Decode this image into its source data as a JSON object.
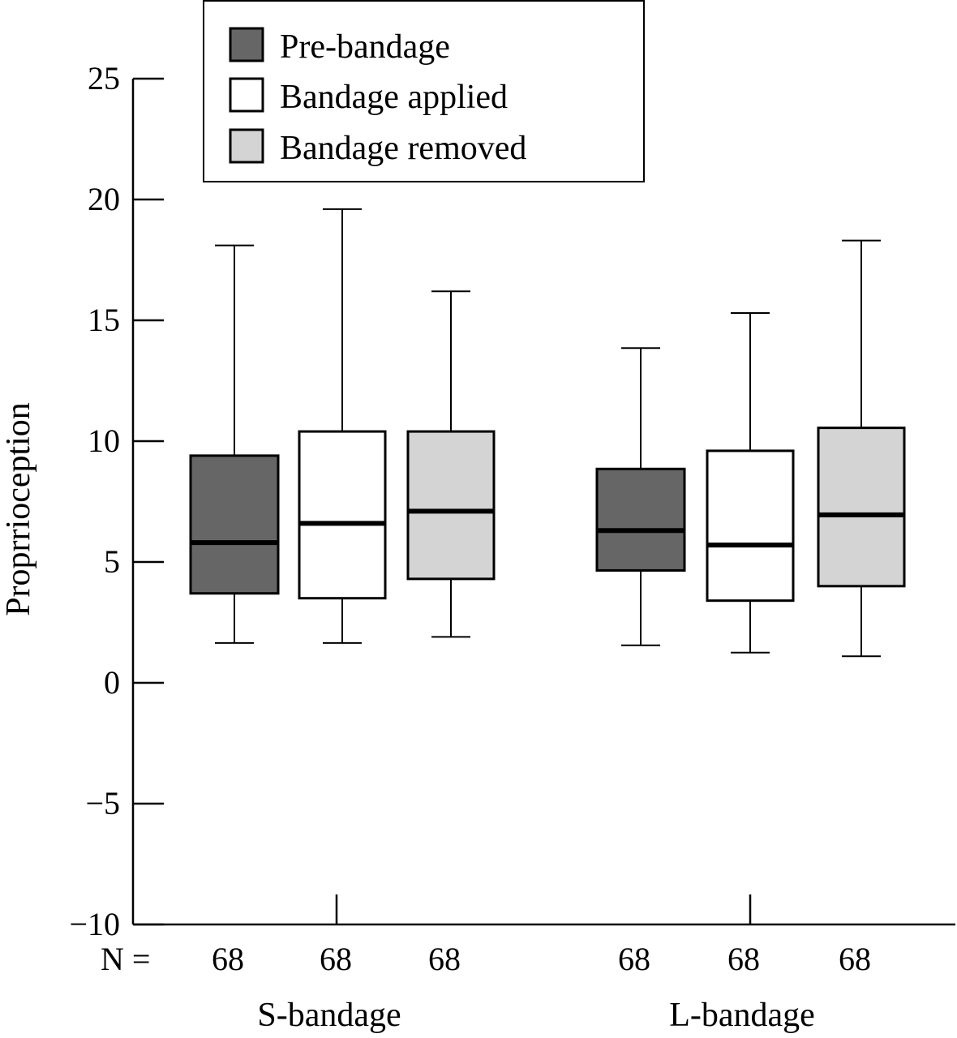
{
  "chart_data": {
    "type": "boxplot",
    "title": "",
    "xlabel": "",
    "ylabel": "Proprrioception",
    "ylim": [
      -10,
      25
    ],
    "yticks": [
      25,
      20,
      15,
      10,
      5,
      0,
      -5,
      -10
    ],
    "ytick_labels": [
      "25",
      "20",
      "15",
      "10",
      "5",
      "0",
      "−5",
      "−10"
    ],
    "grid": false,
    "legend_position": "top",
    "n_prefix": "N =",
    "series": [
      {
        "name": "Pre-bandage",
        "color": "#666666"
      },
      {
        "name": "Bandage applied",
        "color": "#ffffff"
      },
      {
        "name": "Bandage removed",
        "color": "#d4d4d4"
      }
    ],
    "groups": [
      {
        "label": "S-bandage",
        "boxes": [
          {
            "series": 0,
            "min": 1.65,
            "q1": 3.7,
            "median": 5.8,
            "q3": 9.4,
            "max": 18.1,
            "n": "68"
          },
          {
            "series": 1,
            "min": 1.65,
            "q1": 3.5,
            "median": 6.6,
            "q3": 10.4,
            "max": 19.6,
            "n": "68"
          },
          {
            "series": 2,
            "min": 1.9,
            "q1": 4.3,
            "median": 7.1,
            "q3": 10.4,
            "max": 16.2,
            "n": "68"
          }
        ]
      },
      {
        "label": "L-bandage",
        "boxes": [
          {
            "series": 0,
            "min": 1.55,
            "q1": 4.65,
            "median": 6.3,
            "q3": 8.85,
            "max": 13.85,
            "n": "68"
          },
          {
            "series": 1,
            "min": 1.25,
            "q1": 3.4,
            "median": 5.7,
            "q3": 9.6,
            "max": 15.3,
            "n": "68"
          },
          {
            "series": 2,
            "min": 1.1,
            "q1": 4.0,
            "median": 6.95,
            "q3": 10.55,
            "max": 18.3,
            "n": "68"
          }
        ]
      }
    ]
  }
}
